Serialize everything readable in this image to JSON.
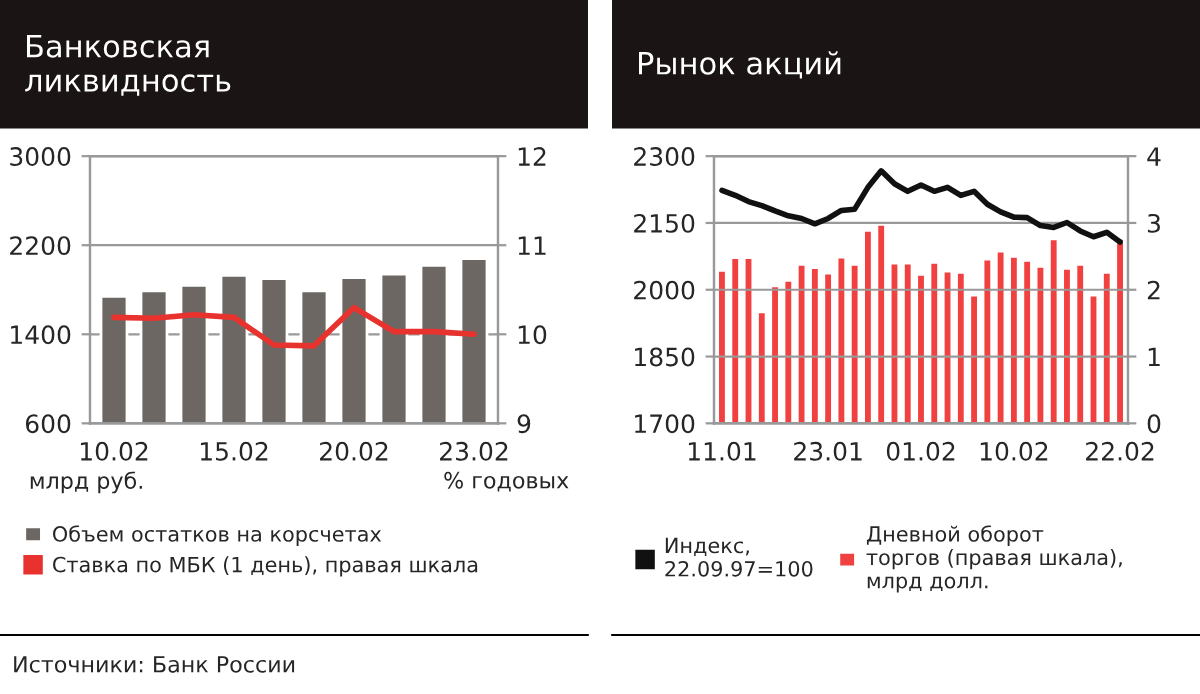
{
  "chart_data": [
    {
      "type": "bar",
      "title": "Банковская\nликвидность",
      "ylabel": "млрд руб.",
      "y2label": "% годовых",
      "categories": [
        "10.02",
        null,
        null,
        "15.02",
        null,
        null,
        "20.02",
        null,
        null,
        "23.02"
      ],
      "series": [
        {
          "name": "Объем остатков на корсчетах",
          "color": "#6d6763",
          "values": [
            1740,
            1790,
            1840,
            1930,
            1900,
            1790,
            1910,
            1940,
            2020,
            2080
          ]
        },
        {
          "name": "Ставка по МБК (1 день), правая шкала",
          "type": "line",
          "axis": "y2",
          "color": "#e8322e",
          "values": [
            10.19,
            10.18,
            10.22,
            10.19,
            9.88,
            9.87,
            10.3,
            10.03,
            10.03,
            10.0
          ]
        }
      ],
      "ylim": [
        600,
        3000
      ],
      "yticks": [
        600,
        1400,
        2200,
        3000
      ],
      "y2lim": [
        9,
        12
      ],
      "y2ticks": [
        9,
        10,
        11,
        12
      ],
      "grid": "y",
      "legend": "bottom",
      "annotations": [
        "Источники: Банк России"
      ]
    },
    {
      "type": "bar",
      "title": "Рынок акций",
      "categories": [
        "11.01",
        null,
        null,
        null,
        null,
        null,
        null,
        null,
        "23.01",
        null,
        null,
        null,
        null,
        null,
        null,
        "01.02",
        null,
        null,
        null,
        null,
        null,
        null,
        "10.02",
        null,
        null,
        null,
        null,
        null,
        null,
        null,
        "22.02"
      ],
      "series": [
        {
          "name": "Индекс,\n22.09.97=100",
          "type": "line",
          "color": "#111111",
          "values": [
            2223,
            2212,
            2198,
            2189,
            2177,
            2166,
            2160,
            2148,
            2160,
            2178,
            2181,
            2230,
            2267,
            2238,
            2221,
            2235,
            2221,
            2230,
            2212,
            2221,
            2192,
            2175,
            2163,
            2162,
            2144,
            2140,
            2151,
            2132,
            2119,
            2129,
            2107
          ]
        },
        {
          "name": "Дневной оборот\nторгов (правая шкала),\nмлрд долл.",
          "axis": "y2",
          "color": "#f04040",
          "values": [
            2.29,
            2.48,
            2.48,
            1.67,
            2.06,
            2.14,
            2.38,
            2.33,
            2.25,
            2.49,
            2.38,
            2.89,
            2.98,
            2.4,
            2.4,
            2.23,
            2.41,
            2.28,
            2.26,
            1.92,
            2.46,
            2.58,
            2.5,
            2.44,
            2.35,
            2.76,
            2.32,
            2.38,
            1.92,
            2.26,
            2.77
          ]
        }
      ],
      "ylim": [
        1700,
        2300
      ],
      "yticks": [
        1700,
        1850,
        2000,
        2150,
        2300
      ],
      "y2lim": [
        0,
        4
      ],
      "y2ticks": [
        0,
        1,
        2,
        3,
        4
      ],
      "grid": "y",
      "legend": "bottom"
    }
  ]
}
